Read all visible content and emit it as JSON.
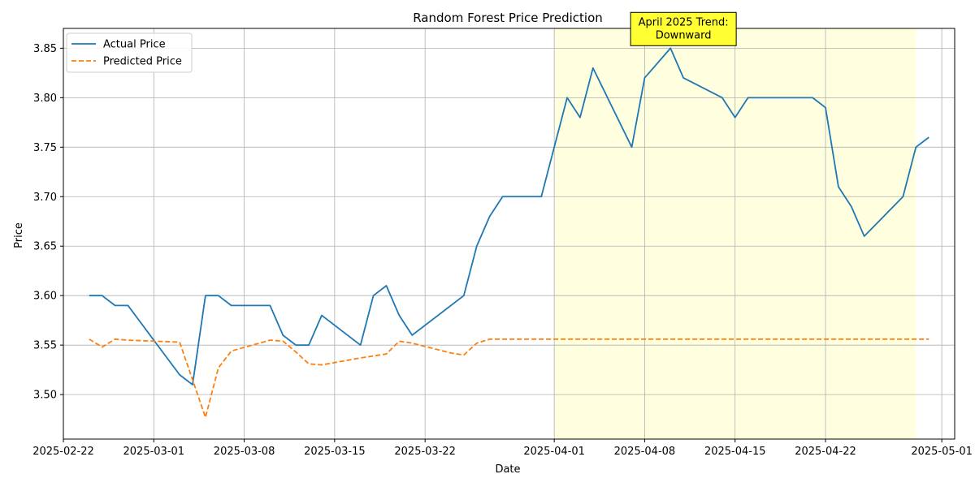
{
  "chart_data": {
    "type": "line",
    "title": "Random Forest Price Prediction",
    "xlabel": "Date",
    "ylabel": "Price",
    "x_range": [
      "2025-02-22",
      "2025-05-02"
    ],
    "ylim": [
      3.455,
      3.87
    ],
    "x_ticks": [
      "2025-02-22",
      "2025-03-01",
      "2025-03-08",
      "2025-03-15",
      "2025-03-22",
      "2025-04-01",
      "2025-04-08",
      "2025-04-15",
      "2025-04-22",
      "2025-05-01"
    ],
    "y_ticks": [
      "3.50",
      "3.55",
      "3.60",
      "3.65",
      "3.70",
      "3.75",
      "3.80",
      "3.85"
    ],
    "grid": true,
    "legend_position": "top-left",
    "highlight_span": {
      "start": "2025-04-01",
      "end": "2025-04-29",
      "color": "#ffffe0"
    },
    "annotation": {
      "line1": "April 2025 Trend:",
      "line2": "Downward",
      "anchor_date": "2025-04-11",
      "anchor_value": 3.855,
      "bg": "#ffff33"
    },
    "series": [
      {
        "name": "Actual Price",
        "color": "#1f77b4",
        "style": "solid",
        "points": [
          [
            "2025-02-24",
            3.6
          ],
          [
            "2025-02-25",
            3.6
          ],
          [
            "2025-02-26",
            3.59
          ],
          [
            "2025-02-27",
            3.59
          ],
          [
            "2025-03-03",
            3.52
          ],
          [
            "2025-03-04",
            3.51
          ],
          [
            "2025-03-05",
            3.6
          ],
          [
            "2025-03-06",
            3.6
          ],
          [
            "2025-03-07",
            3.59
          ],
          [
            "2025-03-10",
            3.59
          ],
          [
            "2025-03-11",
            3.56
          ],
          [
            "2025-03-12",
            3.55
          ],
          [
            "2025-03-13",
            3.55
          ],
          [
            "2025-03-14",
            3.58
          ],
          [
            "2025-03-17",
            3.55
          ],
          [
            "2025-03-18",
            3.6
          ],
          [
            "2025-03-19",
            3.61
          ],
          [
            "2025-03-20",
            3.58
          ],
          [
            "2025-03-21",
            3.56
          ],
          [
            "2025-03-25",
            3.6
          ],
          [
            "2025-03-26",
            3.65
          ],
          [
            "2025-03-27",
            3.68
          ],
          [
            "2025-03-28",
            3.7
          ],
          [
            "2025-03-31",
            3.7
          ],
          [
            "2025-04-02",
            3.8
          ],
          [
            "2025-04-03",
            3.78
          ],
          [
            "2025-04-04",
            3.83
          ],
          [
            "2025-04-07",
            3.75
          ],
          [
            "2025-04-08",
            3.82
          ],
          [
            "2025-04-10",
            3.85
          ],
          [
            "2025-04-11",
            3.82
          ],
          [
            "2025-04-14",
            3.8
          ],
          [
            "2025-04-15",
            3.78
          ],
          [
            "2025-04-16",
            3.8
          ],
          [
            "2025-04-21",
            3.8
          ],
          [
            "2025-04-22",
            3.79
          ],
          [
            "2025-04-23",
            3.71
          ],
          [
            "2025-04-24",
            3.69
          ],
          [
            "2025-04-25",
            3.66
          ],
          [
            "2025-04-28",
            3.7
          ],
          [
            "2025-04-29",
            3.75
          ],
          [
            "2025-04-30",
            3.76
          ]
        ]
      },
      {
        "name": "Predicted Price",
        "color": "#ff7f0e",
        "style": "dashed",
        "points": [
          [
            "2025-02-24",
            3.556
          ],
          [
            "2025-02-25",
            3.548
          ],
          [
            "2025-02-26",
            3.556
          ],
          [
            "2025-02-27",
            3.555
          ],
          [
            "2025-03-03",
            3.553
          ],
          [
            "2025-03-04",
            3.515
          ],
          [
            "2025-03-05",
            3.477
          ],
          [
            "2025-03-06",
            3.527
          ],
          [
            "2025-03-07",
            3.544
          ],
          [
            "2025-03-10",
            3.555
          ],
          [
            "2025-03-11",
            3.554
          ],
          [
            "2025-03-12",
            3.543
          ],
          [
            "2025-03-13",
            3.531
          ],
          [
            "2025-03-14",
            3.53
          ],
          [
            "2025-03-17",
            3.537
          ],
          [
            "2025-03-18",
            3.539
          ],
          [
            "2025-03-19",
            3.541
          ],
          [
            "2025-03-20",
            3.554
          ],
          [
            "2025-03-21",
            3.552
          ],
          [
            "2025-03-24",
            3.542
          ],
          [
            "2025-03-25",
            3.54
          ],
          [
            "2025-03-26",
            3.552
          ],
          [
            "2025-03-27",
            3.556
          ],
          [
            "2025-03-28",
            3.556
          ],
          [
            "2025-04-30",
            3.556
          ]
        ]
      }
    ]
  }
}
